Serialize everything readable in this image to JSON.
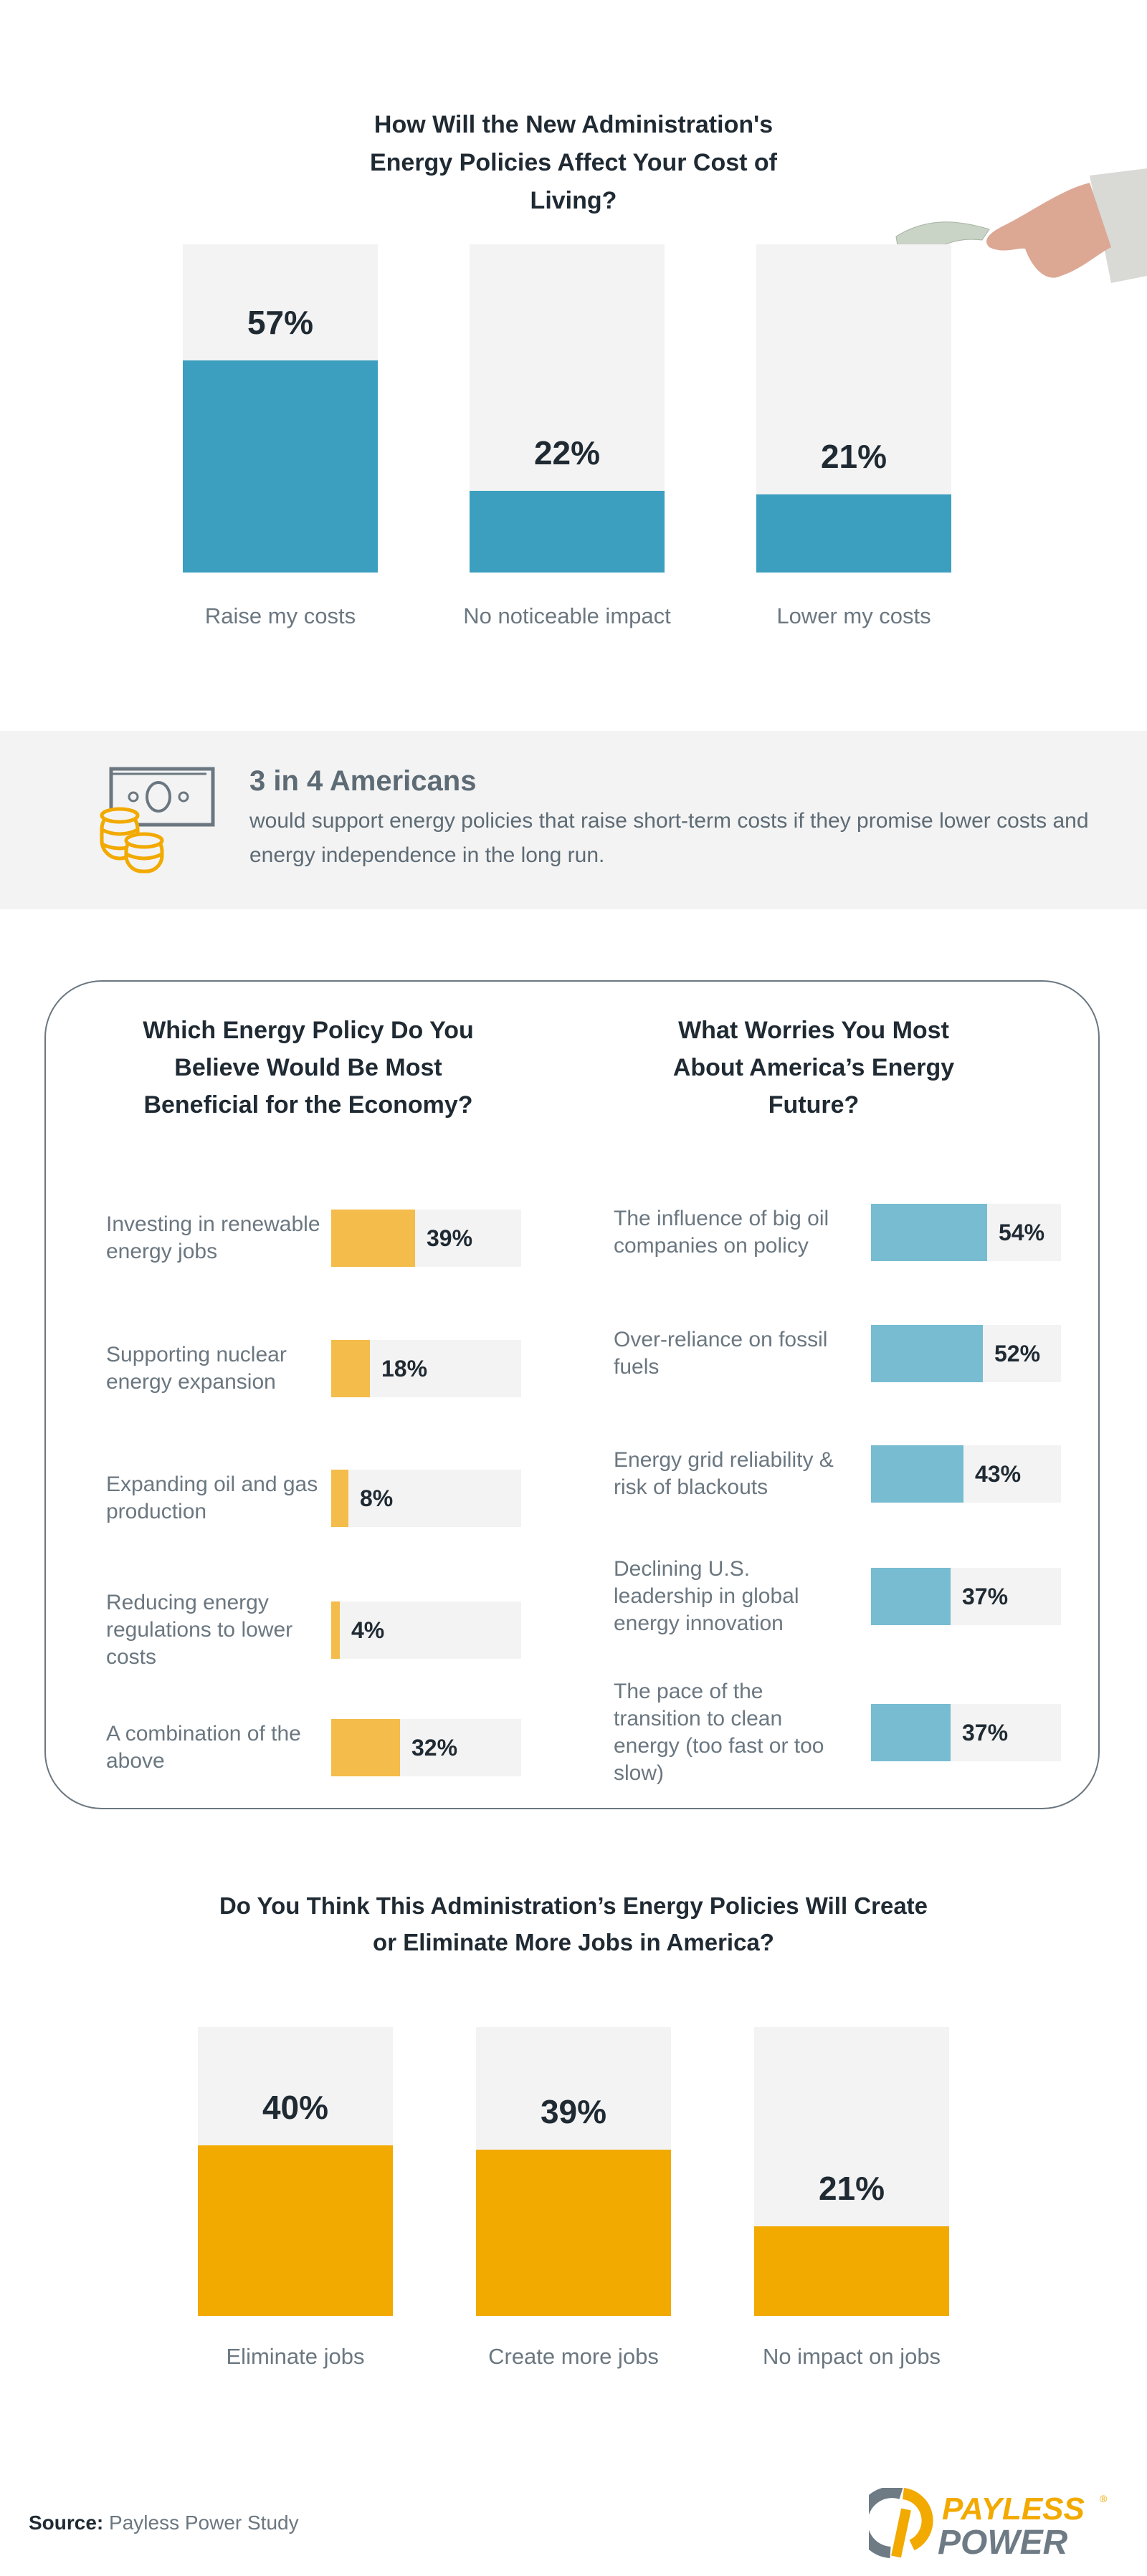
{
  "colors": {
    "teal": "#3c9fbf",
    "track": "#f3f3f3",
    "yellow": "#f4bc4a",
    "light_blue": "#77bcd1",
    "orange": "#f2a900",
    "text_dark": "#1f2a33",
    "text_gray": "#6b7780"
  },
  "highlight": {
    "icon": "money-coins-icon",
    "headline": "3 in 4 Americans",
    "body": "would support energy policies that raise short-term costs if they promise lower costs and energy independence in the long run."
  },
  "chart_data": [
    {
      "type": "bar",
      "title": "How Will the New Administration's Energy Policies Affect Your Cost of Living?",
      "categories": [
        "Raise my costs",
        "No noticeable impact",
        "Lower my costs"
      ],
      "values": [
        57,
        22,
        21
      ],
      "labels": [
        "57%",
        "22%",
        "21%"
      ],
      "color": "#3c9fbf"
    },
    {
      "type": "bar",
      "orientation": "horizontal",
      "title": "Which Energy Policy Do You Believe Would Be Most Beneficial for the Economy?",
      "categories": [
        "Investing in renewable energy jobs",
        "Supporting nuclear energy expansion",
        "Expanding oil and gas production",
        "Reducing energy regulations to lower costs",
        "A combination of the above"
      ],
      "values": [
        39,
        18,
        8,
        4,
        32
      ],
      "labels": [
        "39%",
        "18%",
        "8%",
        "4%",
        "32%"
      ],
      "color": "#f4bc4a"
    },
    {
      "type": "bar",
      "orientation": "horizontal",
      "title": "What Worries You Most About America’s Energy Future?",
      "categories": [
        "The influence of big oil companies on policy",
        "Over-reliance on fossil fuels",
        "Energy grid reliability & risk of blackouts",
        "Declining U.S. leadership in global energy innovation",
        "The pace of the transition to clean energy (too fast or too slow)"
      ],
      "values": [
        54,
        52,
        43,
        37,
        37
      ],
      "labels": [
        "54%",
        "52%",
        "43%",
        "37%",
        "37%"
      ],
      "color": "#77bcd1"
    },
    {
      "type": "bar",
      "title": "Do You Think This Administration’s Energy Policies Will Create or Eliminate More Jobs in America?",
      "categories": [
        "Eliminate jobs",
        "Create more jobs",
        "No impact on jobs"
      ],
      "values": [
        40,
        39,
        21
      ],
      "labels": [
        "40%",
        "39%",
        "21%"
      ],
      "color": "#f2a900"
    }
  ],
  "footer": {
    "source_label": "Source:",
    "source_text": "Payless Power Study",
    "logo_text": [
      "PAYLESS",
      "POWER"
    ]
  }
}
